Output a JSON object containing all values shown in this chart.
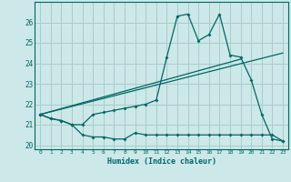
{
  "xlabel": "Humidex (Indice chaleur)",
  "bg_color": "#cce8e8",
  "grid_color": "#aacccc",
  "line_color": "#006666",
  "xlim": [
    -0.5,
    23.5
  ],
  "ylim": [
    19.8,
    27.0
  ],
  "xticks": [
    0,
    1,
    2,
    3,
    4,
    5,
    6,
    7,
    8,
    9,
    10,
    11,
    12,
    13,
    14,
    15,
    16,
    17,
    18,
    19,
    20,
    21,
    22,
    23
  ],
  "yticks": [
    20,
    21,
    22,
    23,
    24,
    25,
    26
  ],
  "curve_main_x": [
    0,
    1,
    2,
    3,
    4,
    5,
    6,
    7,
    8,
    9,
    10,
    11,
    12,
    13,
    14,
    15,
    16,
    17,
    18,
    19,
    20,
    21,
    22,
    23
  ],
  "curve_main_y": [
    21.5,
    21.3,
    21.2,
    21.0,
    21.0,
    21.5,
    21.6,
    21.7,
    21.8,
    21.9,
    22.0,
    22.2,
    24.3,
    26.3,
    26.4,
    25.1,
    25.4,
    26.4,
    24.4,
    24.3,
    23.2,
    21.5,
    20.3,
    20.2
  ],
  "curve_low_x": [
    0,
    1,
    2,
    3,
    4,
    5,
    6,
    7,
    8,
    9,
    10,
    11,
    12,
    13,
    14,
    15,
    16,
    17,
    18,
    19,
    20,
    21,
    22,
    23
  ],
  "curve_low_y": [
    21.5,
    21.3,
    21.2,
    21.0,
    20.5,
    20.4,
    20.4,
    20.3,
    20.3,
    20.6,
    20.5,
    20.5,
    20.5,
    20.5,
    20.5,
    20.5,
    20.5,
    20.5,
    20.5,
    20.5,
    20.5,
    20.5,
    20.5,
    20.2
  ],
  "line1_x": [
    0,
    23
  ],
  "line1_y": [
    21.5,
    24.5
  ],
  "line2_x": [
    0,
    19
  ],
  "line2_y": [
    21.5,
    24.2
  ]
}
